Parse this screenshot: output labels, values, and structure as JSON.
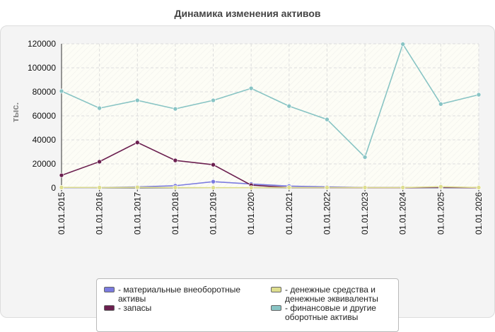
{
  "title": "Динамика изменения активов",
  "chart_data": {
    "type": "line",
    "title": "Динамика изменения активов",
    "ylabel": "тыс.",
    "xlabel": "",
    "categories": [
      "01.01.2015",
      "01.01.2016",
      "01.01.2017",
      "01.01.2018",
      "01.01.2019",
      "01.01.2020",
      "01.01.2021",
      "01.01.2022",
      "01.01.2023",
      "01.01.2024",
      "01.01.2025",
      "01.01.2026"
    ],
    "ylim": [
      0,
      120000
    ],
    "yticks": [
      "0",
      "20000",
      "40000",
      "60000",
      "80000",
      "100000",
      "120000"
    ],
    "grid": true,
    "legend_position": "bottom",
    "series": [
      {
        "name": "- материальные внеоборотные активы",
        "color": "#7b7be0",
        "values": [
          200,
          300,
          900,
          1800,
          5200,
          3300,
          1500,
          800,
          300,
          300,
          300,
          300
        ]
      },
      {
        "name": "- запасы",
        "color": "#6b1f4f",
        "values": [
          10500,
          21800,
          37800,
          22900,
          19300,
          2300,
          300,
          200,
          200,
          200,
          600,
          200
        ]
      },
      {
        "name": "- денежные средства и денежные эквиваленты",
        "color": "#dede8e",
        "values": [
          400,
          300,
          500,
          300,
          200,
          200,
          300,
          300,
          300,
          300,
          1000,
          300
        ]
      },
      {
        "name": "- финансовые и другие оборотные активы",
        "color": "#88c4c4",
        "values": [
          80600,
          66400,
          72900,
          65800,
          72900,
          82900,
          68100,
          57000,
          25600,
          119700,
          69800,
          77600
        ]
      }
    ]
  }
}
